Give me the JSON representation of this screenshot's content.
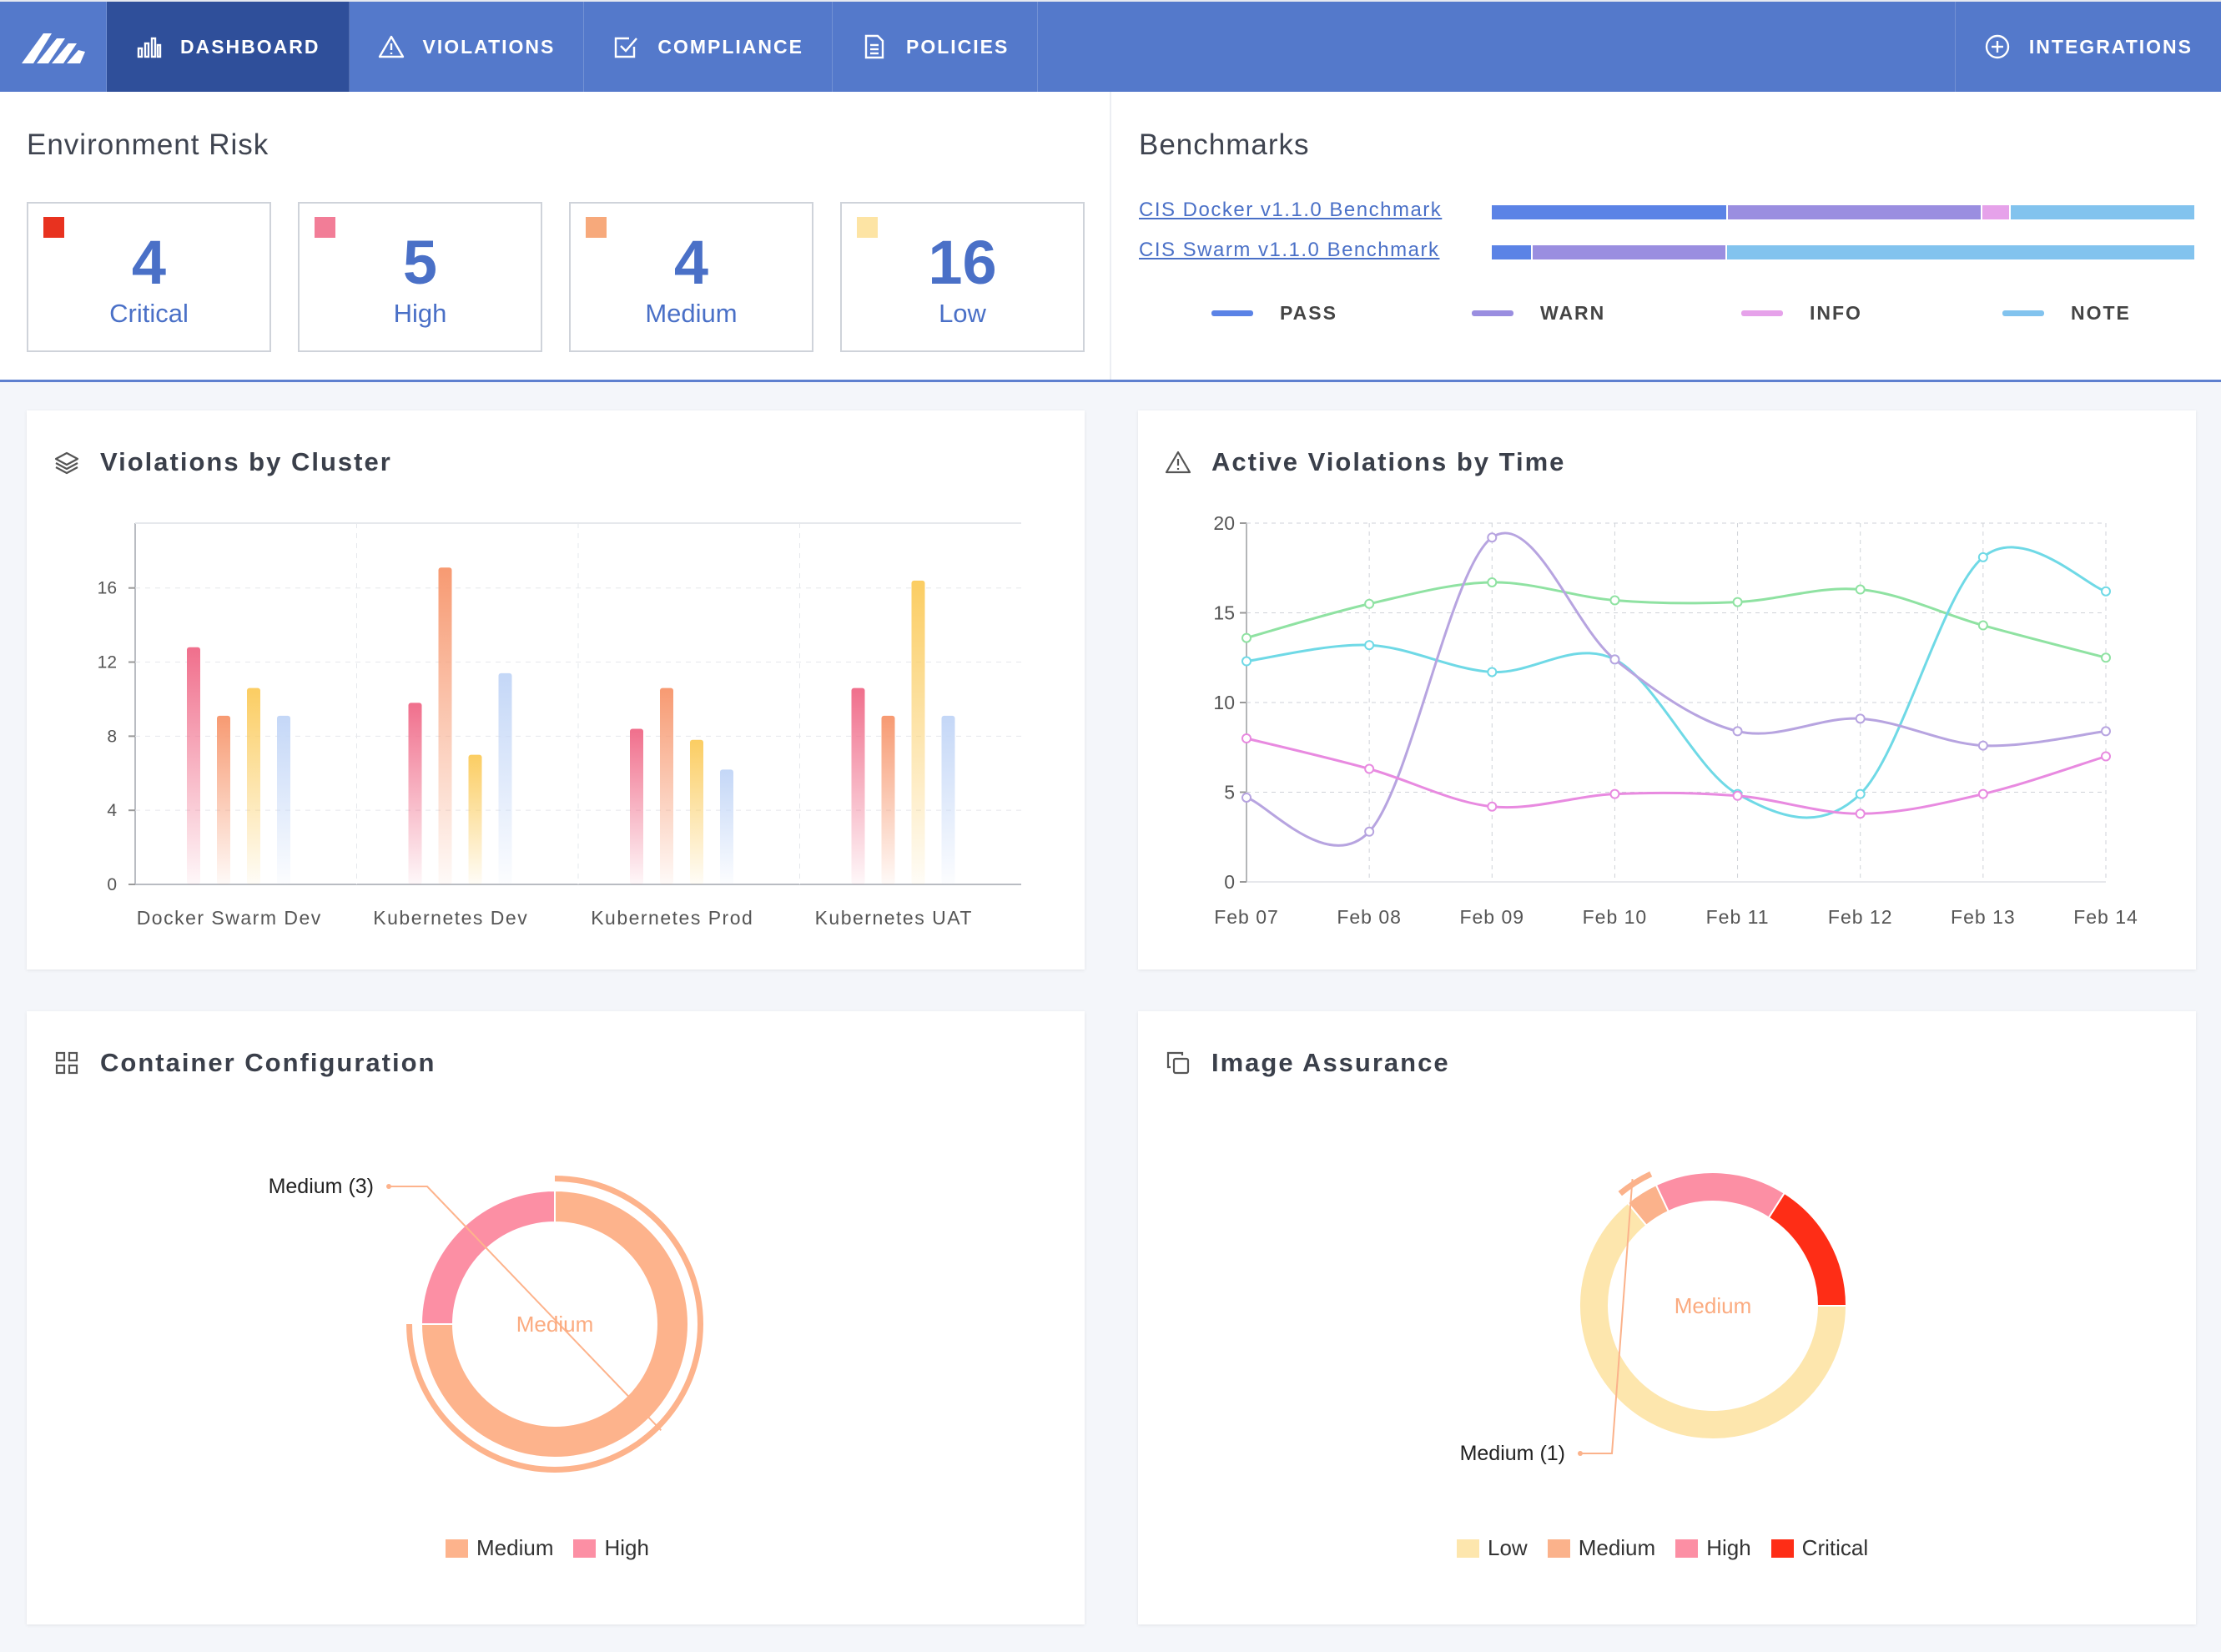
{
  "nav": {
    "items": [
      {
        "label": "DASHBOARD",
        "icon": "bar-chart-icon",
        "active": true
      },
      {
        "label": "VIOLATIONS",
        "icon": "warning-icon",
        "active": false
      },
      {
        "label": "COMPLIANCE",
        "icon": "checkbox-icon",
        "active": false
      },
      {
        "label": "POLICIES",
        "icon": "document-icon",
        "active": false
      }
    ],
    "right_item": {
      "label": "INTEGRATIONS",
      "icon": "plus-circle-icon"
    }
  },
  "environment_risk": {
    "title": "Environment Risk",
    "cards": [
      {
        "value": "4",
        "label": "Critical",
        "color": "#e8321f"
      },
      {
        "value": "5",
        "label": "High",
        "color": "#f27d97"
      },
      {
        "value": "4",
        "label": "Medium",
        "color": "#f7a97b"
      },
      {
        "value": "16",
        "label": "Low",
        "color": "#fde4a4"
      }
    ]
  },
  "benchmarks": {
    "title": "Benchmarks",
    "items": [
      {
        "name": "CIS Docker v1.1.0 Benchmark",
        "segments": [
          0.335,
          0.362,
          0.04,
          0.263
        ]
      },
      {
        "name": "CIS Swarm v1.1.0 Benchmark",
        "segments": [
          0.058,
          0.276,
          0.0,
          0.666
        ]
      }
    ],
    "legend": [
      {
        "label": "PASS",
        "color": "#5b83e6"
      },
      {
        "label": "WARN",
        "color": "#9a8ee0"
      },
      {
        "label": "INFO",
        "color": "#e6a2ea"
      },
      {
        "label": "NOTE",
        "color": "#82c3ee"
      }
    ]
  },
  "violations_by_cluster": {
    "title": "Violations by Cluster",
    "icon": "layers-icon",
    "chart_data": {
      "type": "bar",
      "categories": [
        "Docker Swarm Dev",
        "Kubernetes Dev",
        "Kubernetes Prod",
        "Kubernetes UAT"
      ],
      "series": [
        {
          "values": [
            12.8,
            9.8,
            8.4,
            10.6
          ],
          "color": "#f06f8c"
        },
        {
          "values": [
            9.1,
            17.1,
            10.6,
            9.1
          ],
          "color": "#f79a72"
        },
        {
          "values": [
            10.6,
            7.0,
            7.8,
            16.4
          ],
          "color": "#fbcd62"
        },
        {
          "values": [
            9.1,
            11.4,
            6.2,
            9.1
          ],
          "color": "#c4d7f7"
        }
      ],
      "yticks": [
        0,
        4,
        8,
        12,
        16
      ],
      "ylim": [
        0,
        19.5
      ]
    }
  },
  "active_violations": {
    "title": "Active Violations by Time",
    "icon": "warning-icon",
    "chart_data": {
      "type": "line",
      "x": [
        "Feb 07",
        "Feb 08",
        "Feb 09",
        "Feb 10",
        "Feb 11",
        "Feb 12",
        "Feb 13",
        "Feb 14"
      ],
      "series": [
        {
          "values": [
            13.6,
            15.5,
            16.7,
            15.7,
            15.6,
            16.3,
            14.3,
            12.5
          ],
          "color": "#8fe2a2"
        },
        {
          "values": [
            12.3,
            13.2,
            11.7,
            12.4,
            4.9,
            4.9,
            18.1,
            16.2
          ],
          "color": "#6fd9e6"
        },
        {
          "values": [
            4.7,
            2.8,
            19.2,
            12.4,
            8.4,
            9.1,
            7.6,
            8.4
          ],
          "color": "#b7a4e0"
        },
        {
          "values": [
            8.0,
            6.3,
            4.2,
            4.9,
            4.8,
            3.8,
            4.9,
            7.0
          ],
          "color": "#e88ae0"
        }
      ],
      "yticks": [
        0,
        5,
        10,
        15,
        20
      ],
      "ylim": [
        0,
        20
      ]
    }
  },
  "container_configuration": {
    "title": "Container Configuration",
    "icon": "grid-icon",
    "chart_data": {
      "type": "pie",
      "center_label": "Medium",
      "callout": "Medium (3)",
      "slices": [
        {
          "label": "Medium",
          "value": 3,
          "color": "#fdb38c"
        },
        {
          "label": "High",
          "value": 1,
          "color": "#fc8fa4"
        }
      ]
    }
  },
  "image_assurance": {
    "title": "Image Assurance",
    "icon": "copy-icon",
    "chart_data": {
      "type": "pie",
      "center_label": "Medium",
      "callout": "Medium (1)",
      "slices": [
        {
          "label": "Low",
          "value": 16,
          "color": "#fde6ad"
        },
        {
          "label": "Medium",
          "value": 1,
          "color": "#fbb28b"
        },
        {
          "label": "High",
          "value": 4,
          "color": "#fc8fa4"
        },
        {
          "label": "Critical",
          "value": 4,
          "color": "#fe2d16"
        }
      ]
    }
  }
}
